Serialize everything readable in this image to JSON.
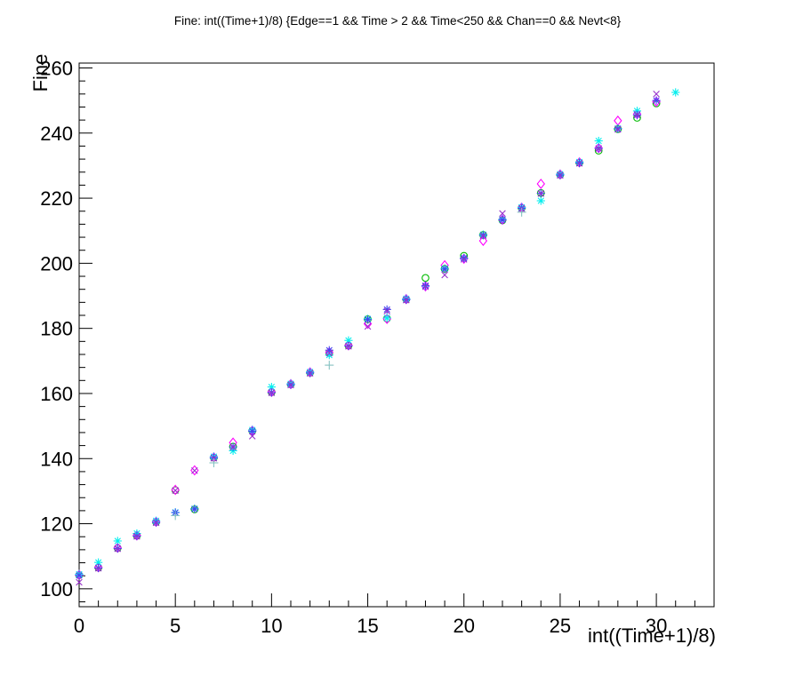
{
  "title": "Fine: int((Time+1)/8) {Edge==1 && Time > 2 && Time<250 && Chan==0 && Nevt<8}",
  "chart_data": {
    "type": "scatter",
    "title": "Fine: int((Time+1)/8) {Edge==1 && Time > 2 && Time<250 && Chan==0 && Nevt<8}",
    "xlabel": "int((Time+1)/8)",
    "ylabel": "Fine",
    "xlim": [
      0,
      33
    ],
    "ylim": [
      94.5,
      261.5
    ],
    "x_major_ticks": [
      0,
      5,
      10,
      15,
      20,
      25,
      30
    ],
    "x_minor_step": 1,
    "y_major_ticks": [
      100,
      120,
      140,
      160,
      180,
      200,
      220,
      240,
      260
    ],
    "y_minor_step": 4,
    "grid": false,
    "legend": "none",
    "axis_color": "#000000",
    "background_color": "#ffffff",
    "series": [
      {
        "name": "green-open-circle",
        "marker": "open-circle",
        "color": "#00bb00",
        "points": [
          [
            0,
            104.2
          ],
          [
            1,
            106.5
          ],
          [
            2,
            112.5
          ],
          [
            3,
            116.3
          ],
          [
            4,
            120.5
          ],
          [
            5,
            130.3
          ],
          [
            6,
            124.4
          ],
          [
            7,
            140.3
          ],
          [
            8,
            143.7
          ],
          [
            9,
            148.5
          ],
          [
            10,
            160.4
          ],
          [
            11,
            162.8
          ],
          [
            12,
            166.4
          ],
          [
            13,
            172.5
          ],
          [
            14,
            174.7
          ],
          [
            15,
            182.8
          ],
          [
            16,
            183.0
          ],
          [
            17,
            188.9
          ],
          [
            18,
            195.5
          ],
          [
            19,
            198.3
          ],
          [
            20,
            202.3
          ],
          [
            21,
            208.7
          ],
          [
            22,
            213.2
          ],
          [
            23,
            217.0
          ],
          [
            24,
            221.6
          ],
          [
            25,
            227.2
          ],
          [
            26,
            230.9
          ],
          [
            27,
            234.6
          ],
          [
            28,
            241.2
          ],
          [
            29,
            244.7
          ],
          [
            30,
            249.1
          ]
        ]
      },
      {
        "name": "magenta-open-diamond",
        "marker": "open-diamond",
        "color": "#ff00ff",
        "points": [
          [
            0,
            104.3
          ],
          [
            1,
            106.6
          ],
          [
            2,
            112.6
          ],
          [
            3,
            116.4
          ],
          [
            4,
            120.6
          ],
          [
            5,
            130.4
          ],
          [
            6,
            136.4
          ],
          [
            7,
            140.4
          ],
          [
            8,
            144.9
          ],
          [
            9,
            148.6
          ],
          [
            10,
            160.5
          ],
          [
            11,
            162.9
          ],
          [
            12,
            166.5
          ],
          [
            13,
            172.6
          ],
          [
            14,
            174.8
          ],
          [
            15,
            181.4
          ],
          [
            16,
            182.9
          ],
          [
            17,
            189.0
          ],
          [
            18,
            192.9
          ],
          [
            19,
            199.4
          ],
          [
            20,
            201.4
          ],
          [
            21,
            206.9
          ],
          [
            22,
            213.4
          ],
          [
            23,
            217.1
          ],
          [
            24,
            224.4
          ],
          [
            25,
            227.3
          ],
          [
            26,
            231.0
          ],
          [
            27,
            235.4
          ],
          [
            28,
            243.8
          ],
          [
            29,
            245.9
          ],
          [
            30,
            249.6
          ]
        ]
      },
      {
        "name": "cyan-asterisk",
        "marker": "asterisk",
        "color": "#00eeee",
        "points": [
          [
            0,
            104.5
          ],
          [
            1,
            108.1
          ],
          [
            2,
            114.7
          ],
          [
            3,
            117.0
          ],
          [
            4,
            120.9
          ],
          [
            5,
            123.5
          ],
          [
            6,
            124.6
          ],
          [
            7,
            140.6
          ],
          [
            8,
            142.4
          ],
          [
            9,
            148.8
          ],
          [
            10,
            162.0
          ],
          [
            11,
            163.0
          ],
          [
            12,
            166.6
          ],
          [
            13,
            171.8
          ],
          [
            14,
            176.3
          ],
          [
            15,
            182.9
          ],
          [
            16,
            183.2
          ],
          [
            17,
            189.1
          ],
          [
            18,
            193.0
          ],
          [
            19,
            198.4
          ],
          [
            20,
            201.6
          ],
          [
            21,
            208.8
          ],
          [
            22,
            213.5
          ],
          [
            23,
            217.2
          ],
          [
            24,
            219.2
          ],
          [
            25,
            227.4
          ],
          [
            26,
            231.1
          ],
          [
            27,
            237.6
          ],
          [
            28,
            241.4
          ],
          [
            29,
            246.8
          ],
          [
            31,
            252.5
          ]
        ]
      },
      {
        "name": "blue-asterisk",
        "marker": "asterisk",
        "color": "#4444ee",
        "points": [
          [
            0,
            104.1
          ],
          [
            1,
            106.4
          ],
          [
            2,
            112.4
          ],
          [
            3,
            116.2
          ],
          [
            4,
            120.4
          ],
          [
            5,
            123.4
          ],
          [
            6,
            124.5
          ],
          [
            7,
            140.2
          ],
          [
            8,
            143.6
          ],
          [
            9,
            148.4
          ],
          [
            10,
            160.3
          ],
          [
            11,
            162.7
          ],
          [
            12,
            166.3
          ],
          [
            13,
            173.3
          ],
          [
            14,
            174.6
          ],
          [
            15,
            182.7
          ],
          [
            16,
            185.8
          ],
          [
            17,
            188.8
          ],
          [
            18,
            193.1
          ],
          [
            19,
            198.2
          ],
          [
            20,
            201.5
          ],
          [
            21,
            208.6
          ],
          [
            22,
            213.3
          ],
          [
            23,
            216.9
          ],
          [
            24,
            221.5
          ],
          [
            25,
            227.1
          ],
          [
            26,
            230.8
          ],
          [
            27,
            235.3
          ],
          [
            28,
            241.3
          ],
          [
            29,
            245.5
          ],
          [
            30,
            250.0
          ]
        ]
      },
      {
        "name": "violet-x-cross",
        "marker": "x-cross",
        "color": "#9933cc",
        "points": [
          [
            0,
            102.0
          ],
          [
            1,
            106.3
          ],
          [
            2,
            112.3
          ],
          [
            3,
            116.1
          ],
          [
            4,
            120.3
          ],
          [
            5,
            130.2
          ],
          [
            6,
            136.3
          ],
          [
            7,
            140.1
          ],
          [
            8,
            143.5
          ],
          [
            9,
            146.9
          ],
          [
            10,
            160.2
          ],
          [
            11,
            162.6
          ],
          [
            12,
            166.2
          ],
          [
            13,
            172.4
          ],
          [
            14,
            174.5
          ],
          [
            15,
            180.6
          ],
          [
            16,
            185.3
          ],
          [
            17,
            188.7
          ],
          [
            18,
            192.8
          ],
          [
            19,
            196.4
          ],
          [
            20,
            201.2
          ],
          [
            21,
            208.5
          ],
          [
            22,
            215.3
          ],
          [
            23,
            216.8
          ],
          [
            24,
            221.4
          ],
          [
            25,
            227.0
          ],
          [
            26,
            230.7
          ],
          [
            27,
            235.2
          ],
          [
            28,
            241.1
          ],
          [
            29,
            245.7
          ],
          [
            30,
            252.0
          ]
        ]
      },
      {
        "name": "teal-plus",
        "marker": "plus",
        "color": "#85c2c2",
        "points": [
          [
            5,
            122.5
          ],
          [
            7,
            138.7
          ],
          [
            13,
            168.7
          ],
          [
            23,
            215.7
          ]
        ]
      }
    ]
  }
}
